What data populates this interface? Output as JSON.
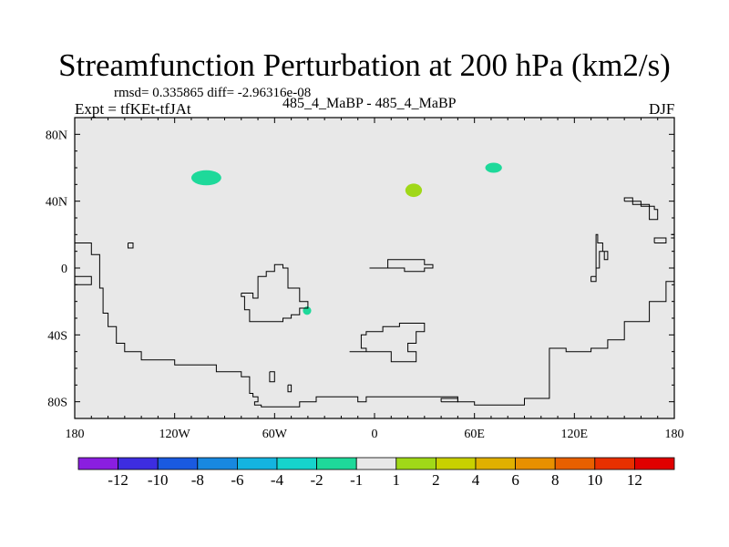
{
  "header": {
    "title": "Streamfunction Perturbation at 200 hPa (km2/s)",
    "stats": "rmsd= 0.335865 diff= -2.96316e-08",
    "expt": "Expt = tfKEt-tfJAt",
    "center": "485_4_MaBP - 485_4_MaBP",
    "season": "DJF"
  },
  "chart_data": {
    "type": "heatmap",
    "title": "Streamfunction Perturbation at 200 hPa (km2/s)",
    "xlim": [
      -180,
      180
    ],
    "ylim": [
      -90,
      90
    ],
    "x_ticks": [
      {
        "value": -180,
        "label": "180"
      },
      {
        "value": -120,
        "label": "120W"
      },
      {
        "value": -60,
        "label": "60W"
      },
      {
        "value": 0,
        "label": "0"
      },
      {
        "value": 60,
        "label": "60E"
      },
      {
        "value": 120,
        "label": "120E"
      },
      {
        "value": 180,
        "label": "180"
      }
    ],
    "y_ticks": [
      {
        "value": 80,
        "label": "80N"
      },
      {
        "value": 40,
        "label": "40N"
      },
      {
        "value": 0,
        "label": "0"
      },
      {
        "value": -40,
        "label": "40S"
      },
      {
        "value": -80,
        "label": "80S"
      }
    ],
    "background_color": "#e8e8e8",
    "colorbar": {
      "labels": [
        "-12",
        "-10",
        "-8",
        "-6",
        "-4",
        "-2",
        "-1",
        "1",
        "2",
        "4",
        "6",
        "8",
        "10",
        "12"
      ],
      "colors": [
        "#8a1ee0",
        "#3d2de0",
        "#1a5ae0",
        "#1888e0",
        "#14b4e0",
        "#16d4cc",
        "#1ed99a",
        "#e8e8e8",
        "#a0d818",
        "#c8d000",
        "#e0b000",
        "#e89000",
        "#e86000",
        "#e83000",
        "#e00000"
      ]
    },
    "anomalies": [
      {
        "lon": -101,
        "lat": 54,
        "dlon": 9,
        "dlat": 4.5,
        "color": "#1ed99a"
      },
      {
        "lon": 71.5,
        "lat": 60,
        "dlon": 5,
        "dlat": 3,
        "color": "#1ed99a"
      },
      {
        "lon": 23.5,
        "lat": 46.5,
        "dlon": 5,
        "dlat": 4,
        "color": "#a0d818"
      },
      {
        "lon": -40.5,
        "lat": -25.5,
        "dlon": 2.5,
        "dlat": 2.5,
        "color": "#1ed99a"
      }
    ],
    "coastlines": [
      [
        [
          -180,
          15
        ],
        [
          -170,
          15
        ],
        [
          -170,
          8
        ],
        [
          -165,
          8
        ],
        [
          -165,
          -12
        ],
        [
          -163,
          -12
        ],
        [
          -163,
          -27
        ],
        [
          -160,
          -27
        ],
        [
          -160,
          -35
        ],
        [
          -155,
          -35
        ],
        [
          -155,
          -45
        ],
        [
          -150,
          -45
        ],
        [
          -150,
          -50
        ],
        [
          -140,
          -50
        ],
        [
          -140,
          -55
        ],
        [
          -120,
          -55
        ],
        [
          -120,
          -58
        ],
        [
          -95,
          -58
        ],
        [
          -95,
          -62
        ],
        [
          -80,
          -62
        ],
        [
          -80,
          -65
        ],
        [
          -75,
          -65
        ],
        [
          -75,
          -75
        ],
        [
          -73,
          -75
        ],
        [
          -73,
          -77
        ],
        [
          -70,
          -77
        ],
        [
          -70,
          -80
        ],
        [
          -72,
          -80
        ],
        [
          -72,
          -82
        ],
        [
          -68,
          -82
        ],
        [
          -68,
          -83
        ],
        [
          -45,
          -83
        ],
        [
          -45,
          -80
        ],
        [
          -35,
          -80
        ],
        [
          -35,
          -77
        ],
        [
          -10,
          -77
        ],
        [
          -10,
          -80
        ],
        [
          -5,
          -80
        ],
        [
          -5,
          -77
        ],
        [
          50,
          -77
        ],
        [
          50,
          -80
        ],
        [
          60,
          -80
        ],
        [
          60,
          -82
        ],
        [
          90,
          -82
        ],
        [
          90,
          -78
        ],
        [
          105,
          -78
        ],
        [
          105,
          -48
        ],
        [
          115,
          -48
        ],
        [
          115,
          -50
        ],
        [
          130,
          -50
        ],
        [
          130,
          -48
        ],
        [
          140,
          -48
        ],
        [
          140,
          -43
        ],
        [
          150,
          -43
        ],
        [
          150,
          -32
        ],
        [
          165,
          -32
        ],
        [
          165,
          -20
        ],
        [
          175,
          -20
        ],
        [
          175,
          -8
        ],
        [
          180,
          -8
        ]
      ],
      [
        [
          -180,
          -5
        ],
        [
          -170,
          -5
        ],
        [
          -170,
          -10
        ],
        [
          -180,
          -10
        ]
      ],
      [
        [
          -148,
          15
        ],
        [
          -145,
          15
        ],
        [
          -145,
          12
        ],
        [
          -148,
          12
        ],
        [
          -148,
          15
        ]
      ],
      [
        [
          -80,
          -15
        ],
        [
          -73,
          -15
        ],
        [
          -73,
          -18
        ],
        [
          -70,
          -18
        ],
        [
          -70,
          -5
        ],
        [
          -65,
          -5
        ],
        [
          -65,
          -2
        ],
        [
          -60,
          -2
        ],
        [
          -60,
          2
        ],
        [
          -55,
          2
        ],
        [
          -55,
          0
        ],
        [
          -52,
          0
        ],
        [
          -52,
          -12
        ],
        [
          -45,
          -12
        ],
        [
          -45,
          -20
        ],
        [
          -40,
          -20
        ],
        [
          -40,
          -24
        ],
        [
          -45,
          -24
        ],
        [
          -45,
          -28
        ],
        [
          -50,
          -28
        ],
        [
          -50,
          -30
        ],
        [
          -55,
          -30
        ],
        [
          -55,
          -32
        ],
        [
          -75,
          -32
        ],
        [
          -75,
          -25
        ],
        [
          -78,
          -25
        ],
        [
          -78,
          -17
        ],
        [
          -80,
          -17
        ],
        [
          -80,
          -15
        ]
      ],
      [
        [
          -63,
          -62
        ],
        [
          -60,
          -62
        ],
        [
          -60,
          -68
        ],
        [
          -63,
          -68
        ],
        [
          -63,
          -62
        ]
      ],
      [
        [
          -52,
          -70
        ],
        [
          -50,
          -70
        ],
        [
          -50,
          -74
        ],
        [
          -52,
          -74
        ],
        [
          -52,
          -70
        ]
      ],
      [
        [
          -3,
          0
        ],
        [
          8,
          0
        ],
        [
          8,
          5
        ],
        [
          30,
          5
        ],
        [
          30,
          2
        ],
        [
          35,
          2
        ],
        [
          35,
          0
        ],
        [
          30,
          0
        ],
        [
          30,
          -2
        ],
        [
          18,
          -2
        ],
        [
          18,
          0
        ],
        [
          -3,
          0
        ]
      ],
      [
        [
          -15,
          -50
        ],
        [
          -5,
          -50
        ],
        [
          -5,
          -48
        ],
        [
          -8,
          -48
        ],
        [
          -8,
          -45
        ],
        [
          -8,
          -40
        ],
        [
          -5,
          -40
        ],
        [
          -5,
          -38
        ],
        [
          5,
          -38
        ],
        [
          5,
          -35
        ],
        [
          15,
          -35
        ],
        [
          15,
          -33
        ],
        [
          30,
          -33
        ],
        [
          30,
          -38
        ],
        [
          25,
          -38
        ],
        [
          25,
          -42
        ],
        [
          25,
          -45
        ],
        [
          20,
          -45
        ],
        [
          20,
          -50
        ],
        [
          25,
          -50
        ],
        [
          25,
          -56
        ],
        [
          10,
          -56
        ],
        [
          10,
          -50
        ],
        [
          -15,
          -50
        ],
        [
          -15,
          -50
        ]
      ],
      [
        [
          40,
          -80
        ],
        [
          50,
          -80
        ],
        [
          50,
          -78
        ],
        [
          40,
          -78
        ],
        [
          40,
          -80
        ]
      ],
      [
        [
          150,
          40
        ],
        [
          160,
          40
        ],
        [
          160,
          37
        ],
        [
          168,
          37
        ],
        [
          168,
          35
        ],
        [
          170,
          35
        ],
        [
          170,
          29
        ],
        [
          165,
          29
        ],
        [
          165,
          38
        ],
        [
          155,
          38
        ],
        [
          155,
          42
        ],
        [
          150,
          42
        ],
        [
          150,
          40
        ]
      ],
      [
        [
          130,
          -5
        ],
        [
          133,
          -5
        ],
        [
          133,
          0
        ],
        [
          135,
          0
        ],
        [
          135,
          10
        ],
        [
          138,
          10
        ],
        [
          138,
          5
        ],
        [
          140,
          5
        ],
        [
          140,
          10
        ],
        [
          137,
          10
        ],
        [
          137,
          15
        ],
        [
          134,
          15
        ],
        [
          134,
          20
        ],
        [
          133,
          20
        ],
        [
          133,
          -8
        ],
        [
          130,
          -8
        ],
        [
          130,
          -5
        ]
      ],
      [
        [
          168,
          15
        ],
        [
          175,
          15
        ],
        [
          175,
          18
        ],
        [
          168,
          18
        ],
        [
          168,
          15
        ]
      ],
      [
        [
          178,
          20
        ],
        [
          180,
          20
        ],
        [
          180,
          18
        ],
        [
          178,
          18
        ]
      ]
    ]
  }
}
